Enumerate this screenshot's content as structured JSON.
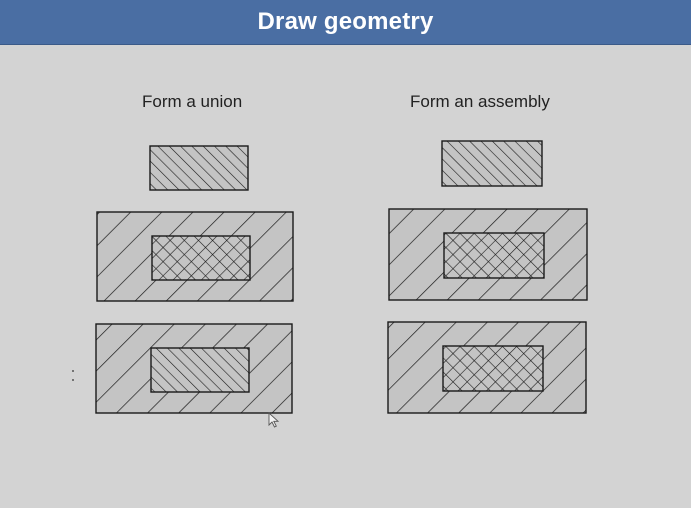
{
  "header": {
    "title": "Draw geometry"
  },
  "columns": {
    "left": {
      "label": "Form a union"
    },
    "right": {
      "label": "Form an assembly"
    }
  },
  "colors": {
    "header_bg": "#4a6ea3",
    "background": "#d3d3d3",
    "shape_fill": "#c4c4c4",
    "outline": "#1a1a1a"
  },
  "icons": [
    "cursor-arrow-icon"
  ]
}
